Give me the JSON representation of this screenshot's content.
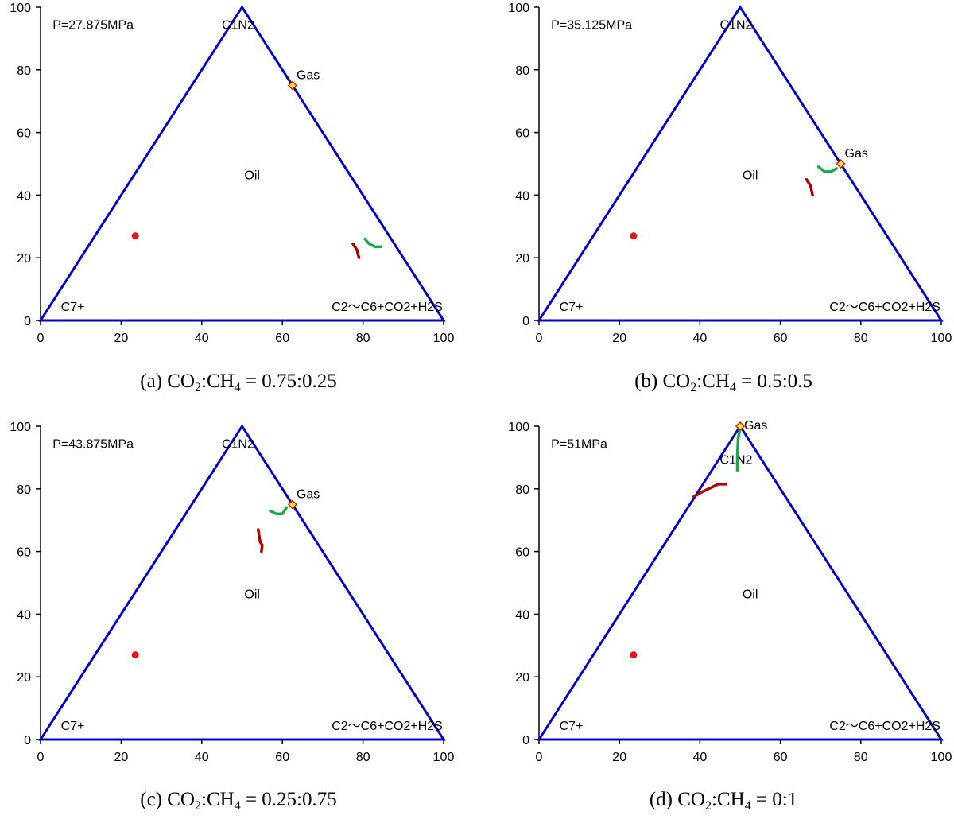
{
  "chart_data": [
    {
      "type": "scatter",
      "panel_label": "(a)",
      "caption": "(a) CO₂:CH₄ = 0.75:0.25",
      "caption_parts": {
        "prefix": "(a) CO",
        "sub1": "2",
        "mid": ":CH",
        "sub2": "4",
        "suffix": " = 0.75:0.25"
      },
      "pressure_label": "P=27.875MPa",
      "xlim": [
        0,
        100
      ],
      "ylim": [
        0,
        100
      ],
      "xticks": [
        "0",
        "20",
        "40",
        "60",
        "80",
        "100"
      ],
      "yticks": [
        "0",
        "20",
        "40",
        "60",
        "80",
        "100"
      ],
      "labels": {
        "top": "C1N2",
        "left": "C7+",
        "right": "C2～C6+CO2+H2S",
        "oil": "Oil",
        "gas": "Gas"
      },
      "label_positions": {
        "top": [
          49,
          93
        ],
        "left": [
          8,
          3
        ],
        "right": [
          86,
          3
        ],
        "oil": [
          52.5,
          45
        ],
        "gas": [
          63.5,
          77
        ]
      },
      "gas_point": [
        62.5,
        75
      ],
      "oil_point": [
        23.5,
        27
      ],
      "red_curve": [
        [
          77.5,
          24.5
        ],
        [
          78.5,
          22.5
        ],
        [
          79,
          20
        ]
      ],
      "green_curve": [
        [
          80.5,
          26
        ],
        [
          81.5,
          24.5
        ],
        [
          83,
          23.5
        ],
        [
          84.5,
          23.5
        ]
      ]
    },
    {
      "type": "scatter",
      "panel_label": "(b)",
      "caption": "(b) CO₂:CH₄ = 0.5:0.5",
      "caption_parts": {
        "prefix": "(b) CO",
        "sub1": "2",
        "mid": ":CH",
        "sub2": "4",
        "suffix": " = 0.5:0.5"
      },
      "pressure_label": "P=35.125MPa",
      "xlim": [
        0,
        100
      ],
      "ylim": [
        0,
        100
      ],
      "xticks": [
        "0",
        "20",
        "40",
        "60",
        "80",
        "100"
      ],
      "yticks": [
        "0",
        "20",
        "40",
        "60",
        "80",
        "100"
      ],
      "labels": {
        "top": "C1N2",
        "left": "C7+",
        "right": "C2～C6+CO2+H2S",
        "oil": "Oil",
        "gas": "Gas"
      },
      "label_positions": {
        "top": [
          49,
          93
        ],
        "left": [
          8,
          3
        ],
        "right": [
          86,
          3
        ],
        "oil": [
          52.5,
          45
        ],
        "gas": [
          76,
          52
        ]
      },
      "gas_point": [
        75,
        50
      ],
      "oil_point": [
        23.5,
        27
      ],
      "red_curve": [
        [
          66.5,
          45
        ],
        [
          67.5,
          43
        ],
        [
          68,
          40
        ]
      ],
      "green_curve": [
        [
          69.5,
          49
        ],
        [
          71,
          47.5
        ],
        [
          72.5,
          47.5
        ],
        [
          74,
          48.5
        ]
      ]
    },
    {
      "type": "scatter",
      "panel_label": "(c)",
      "caption": "(c) CO₂:CH₄ = 0.25:0.75",
      "caption_parts": {
        "prefix": "(c) CO",
        "sub1": "2",
        "mid": ":CH",
        "sub2": "4",
        "suffix": " = 0.25:0.75"
      },
      "pressure_label": "P=43.875MPa",
      "xlim": [
        0,
        100
      ],
      "ylim": [
        0,
        100
      ],
      "xticks": [
        "0",
        "20",
        "40",
        "60",
        "80",
        "100"
      ],
      "yticks": [
        "0",
        "20",
        "40",
        "60",
        "80",
        "100"
      ],
      "labels": {
        "top": "C1N2",
        "left": "C7+",
        "right": "C2～C6+CO2+H2S",
        "oil": "Oil",
        "gas": "Gas"
      },
      "label_positions": {
        "top": [
          49,
          93
        ],
        "left": [
          8,
          3
        ],
        "right": [
          86,
          3
        ],
        "oil": [
          52.5,
          45
        ],
        "gas": [
          63.5,
          77
        ]
      },
      "gas_point": [
        62.5,
        75
      ],
      "oil_point": [
        23.5,
        27
      ],
      "red_curve": [
        [
          54,
          67
        ],
        [
          54.5,
          63
        ],
        [
          55,
          62
        ],
        [
          54.8,
          60
        ]
      ],
      "green_curve": [
        [
          57,
          73
        ],
        [
          58.5,
          72
        ],
        [
          60,
          72
        ],
        [
          61,
          74
        ]
      ]
    },
    {
      "type": "scatter",
      "panel_label": "(d)",
      "caption": "(d) CO₂:CH₄ = 0:1",
      "caption_parts": {
        "prefix": "(d) CO",
        "sub1": "2",
        "mid": ":CH",
        "sub2": "4",
        "suffix": " = 0:1"
      },
      "pressure_label": "P=51MPa",
      "xlim": [
        0,
        100
      ],
      "ylim": [
        0,
        100
      ],
      "xticks": [
        "0",
        "20",
        "40",
        "60",
        "80",
        "100"
      ],
      "yticks": [
        "0",
        "20",
        "40",
        "60",
        "80",
        "100"
      ],
      "labels": {
        "top": "C1N2",
        "left": "C7+",
        "right": "C2～C6+CO2+H2S",
        "oil": "Oil",
        "gas": "Gas"
      },
      "label_positions": {
        "top": [
          49,
          88
        ],
        "left": [
          8,
          3
        ],
        "right": [
          86,
          3
        ],
        "oil": [
          52.5,
          45
        ],
        "gas": [
          51,
          99
        ]
      },
      "gas_point": [
        50,
        100
      ],
      "oil_point": [
        23.5,
        27
      ],
      "red_curve": [
        [
          38.5,
          77.5
        ],
        [
          40.5,
          79
        ],
        [
          43,
          80.5
        ],
        [
          44.5,
          81.5
        ],
        [
          46.5,
          81.5
        ]
      ],
      "green_curve": [
        [
          49.3,
          86
        ],
        [
          49.3,
          91
        ],
        [
          49.5,
          96
        ],
        [
          50,
          99.5
        ]
      ]
    }
  ],
  "colors": {
    "axis": "#000000",
    "triangle": "#0000cc",
    "red_curve": "#b00000",
    "green_curve": "#1aa84a",
    "oil_point": "#e8141b",
    "gas_marker_fill": "#ffee00",
    "gas_marker_stroke": "#e8141b"
  }
}
